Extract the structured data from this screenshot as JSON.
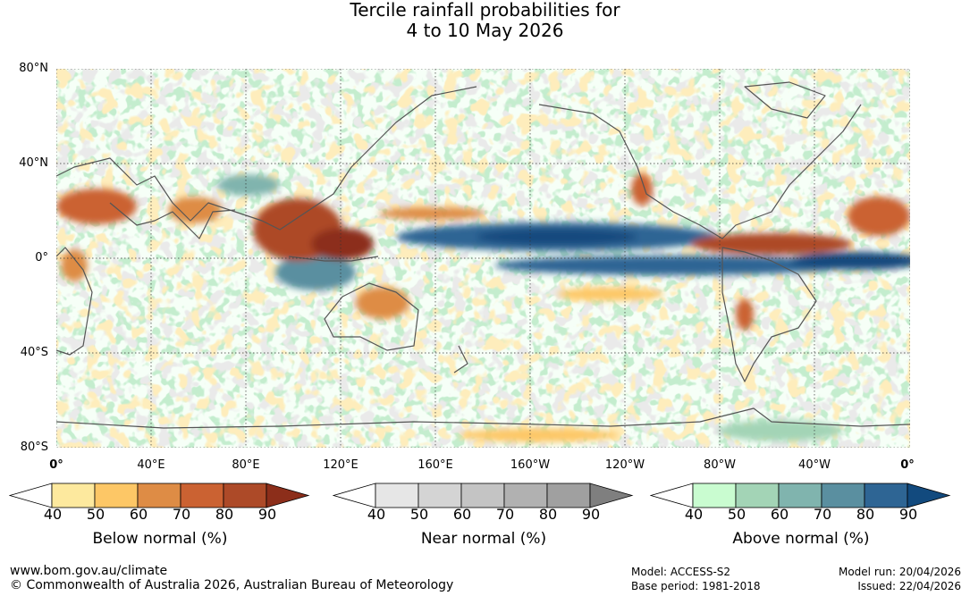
{
  "title_line1": "Tercile rainfall probabilities for",
  "title_line2": "4 to 10 May 2026",
  "lat_labels": [
    "80°N",
    "40°N",
    "0°",
    "40°S",
    "80°S"
  ],
  "lon_labels": [
    "0°",
    "40°E",
    "80°E",
    "120°E",
    "160°E",
    "160°W",
    "120°W",
    "80°W",
    "40°W",
    "0°"
  ],
  "colorbars": [
    {
      "label": "Below normal (%)",
      "ticks": [
        "40",
        "50",
        "60",
        "70",
        "80",
        "90"
      ],
      "colors": [
        "#ffffff",
        "#fde99e",
        "#fdc766",
        "#de8c45",
        "#cb6232",
        "#ad4a28",
        "#8c2e1a"
      ]
    },
    {
      "label": "Near normal (%)",
      "ticks": [
        "40",
        "50",
        "60",
        "70",
        "80",
        "90"
      ],
      "colors": [
        "#ffffff",
        "#e6e6e6",
        "#d4d4d4",
        "#c4c4c4",
        "#b1b1b1",
        "#a0a0a0",
        "#7f7f7f"
      ]
    },
    {
      "label": "Above normal (%)",
      "ticks": [
        "40",
        "50",
        "60",
        "70",
        "80",
        "90"
      ],
      "colors": [
        "#ffffff",
        "#c9fcd0",
        "#a3d4b6",
        "#80b4ae",
        "#5a8fa0",
        "#2e6594",
        "#124a7e"
      ]
    }
  ],
  "footer": {
    "website": "www.bom.gov.au/climate",
    "copyright": "© Commonwealth of Australia 2026, Australian Bureau of Meteorology",
    "model": "Model: ACCESS-S2",
    "base_period": "Base period: 1981-2018",
    "model_run": "Model run: 20/04/2026",
    "issued": "Issued: 22/04/2026"
  }
}
